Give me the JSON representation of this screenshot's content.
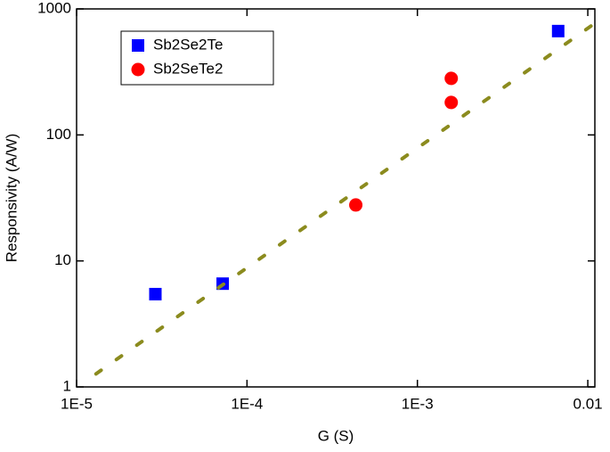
{
  "chart_data": {
    "type": "scatter",
    "x_label": "G (S)",
    "y_label": "Responsivity (A/W)",
    "xscale": "log",
    "yscale": "log",
    "xlim": [
      1e-05,
      0.011
    ],
    "ylim": [
      1,
      1000
    ],
    "xticks": [
      {
        "value": 1e-05,
        "label": "1E-5"
      },
      {
        "value": 0.0001,
        "label": "1E-4"
      },
      {
        "value": 0.001,
        "label": "1E-3"
      },
      0.01
    ],
    "yticks": [
      1,
      10,
      100,
      1000
    ],
    "legend": "upper left",
    "series": [
      {
        "name": "Sb2Se2Te",
        "color": "#0000ff",
        "marker": "square",
        "x": [
          2.9e-05,
          7.2e-05,
          0.0067
        ],
        "values": [
          5.45,
          6.6,
          667
        ]
      },
      {
        "name": "Sb2SeTe2",
        "color": "#ff0000",
        "marker": "circle",
        "x": [
          0.00158,
          0.00158,
          0.000435
        ],
        "values": [
          281,
          181,
          27.8
        ]
      },
      {
        "color": "#8b8b1e",
        "line": "dashed",
        "x": [
          1.3e-05,
          0.0105
        ],
        "values": [
          1.27,
          735
        ]
      }
    ]
  }
}
